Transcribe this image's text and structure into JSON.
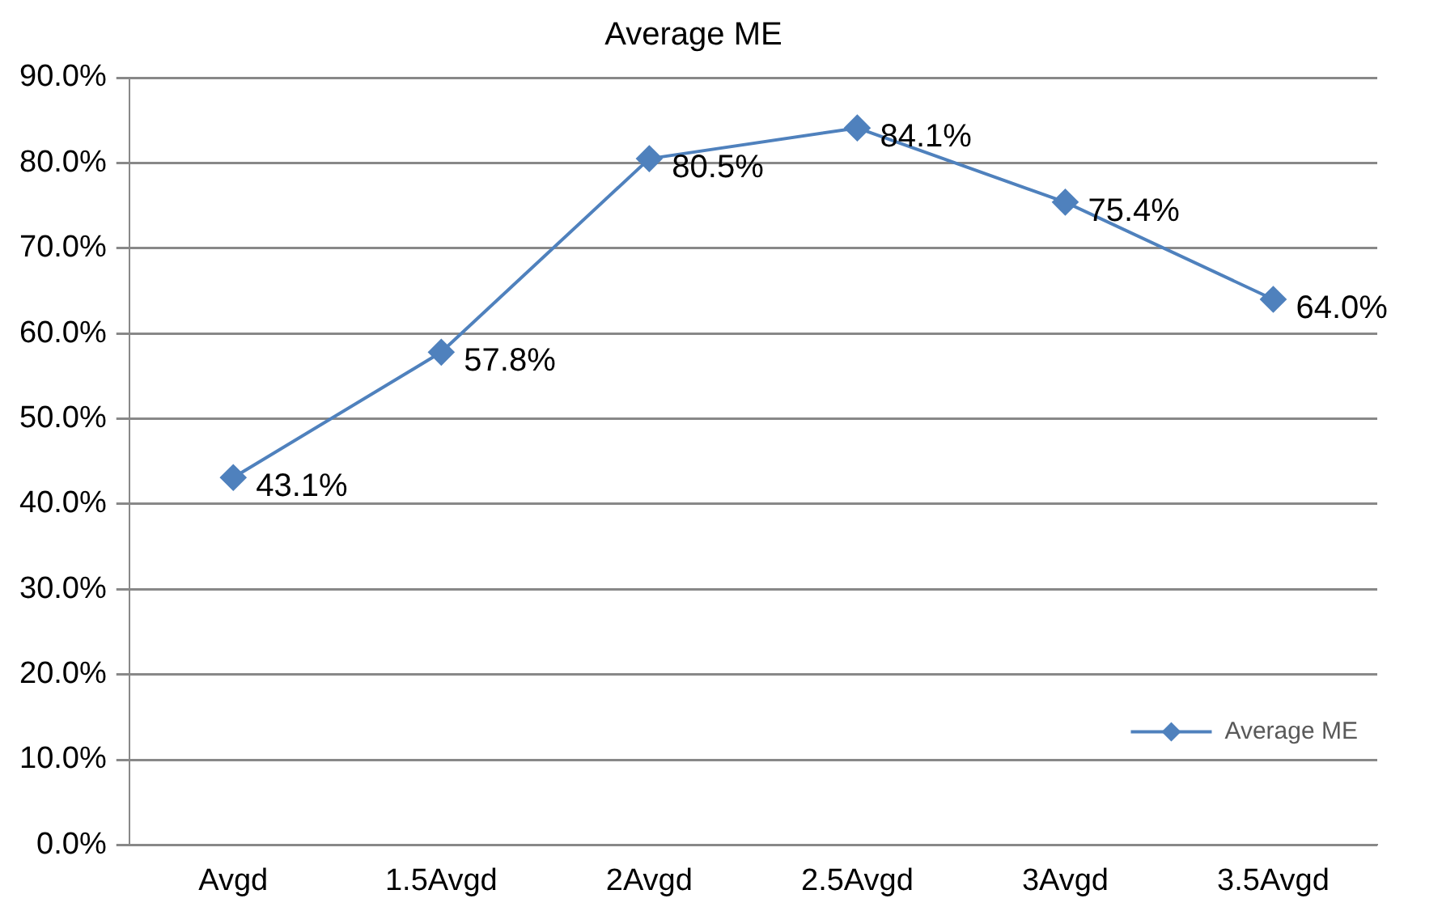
{
  "chart_data": {
    "type": "line",
    "title": "Average ME",
    "categories": [
      "Avgd",
      "1.5Avgd",
      "2Avgd",
      "2.5Avgd",
      "3Avgd",
      "3.5Avgd"
    ],
    "series": [
      {
        "name": "Average ME",
        "color": "#4f81bd",
        "values": [
          43.1,
          57.8,
          80.5,
          84.1,
          75.4,
          64.0
        ],
        "value_labels": [
          "43.1%",
          "57.8%",
          "80.5%",
          "84.1%",
          "75.4%",
          "64.0%"
        ]
      }
    ],
    "ylim": [
      0,
      90
    ],
    "yticks": [
      {
        "value": 0,
        "label": "0.0%"
      },
      {
        "value": 10,
        "label": "10.0%"
      },
      {
        "value": 20,
        "label": "20.0%"
      },
      {
        "value": 30,
        "label": "30.0%"
      },
      {
        "value": 40,
        "label": "40.0%"
      },
      {
        "value": 50,
        "label": "50.0%"
      },
      {
        "value": 60,
        "label": "60.0%"
      },
      {
        "value": 70,
        "label": "70.0%"
      },
      {
        "value": 80,
        "label": "80.0%"
      },
      {
        "value": 90,
        "label": "90.0%"
      }
    ],
    "grid": "y",
    "legend": "bottom right",
    "marker": "diamond",
    "line_style": "solid"
  }
}
